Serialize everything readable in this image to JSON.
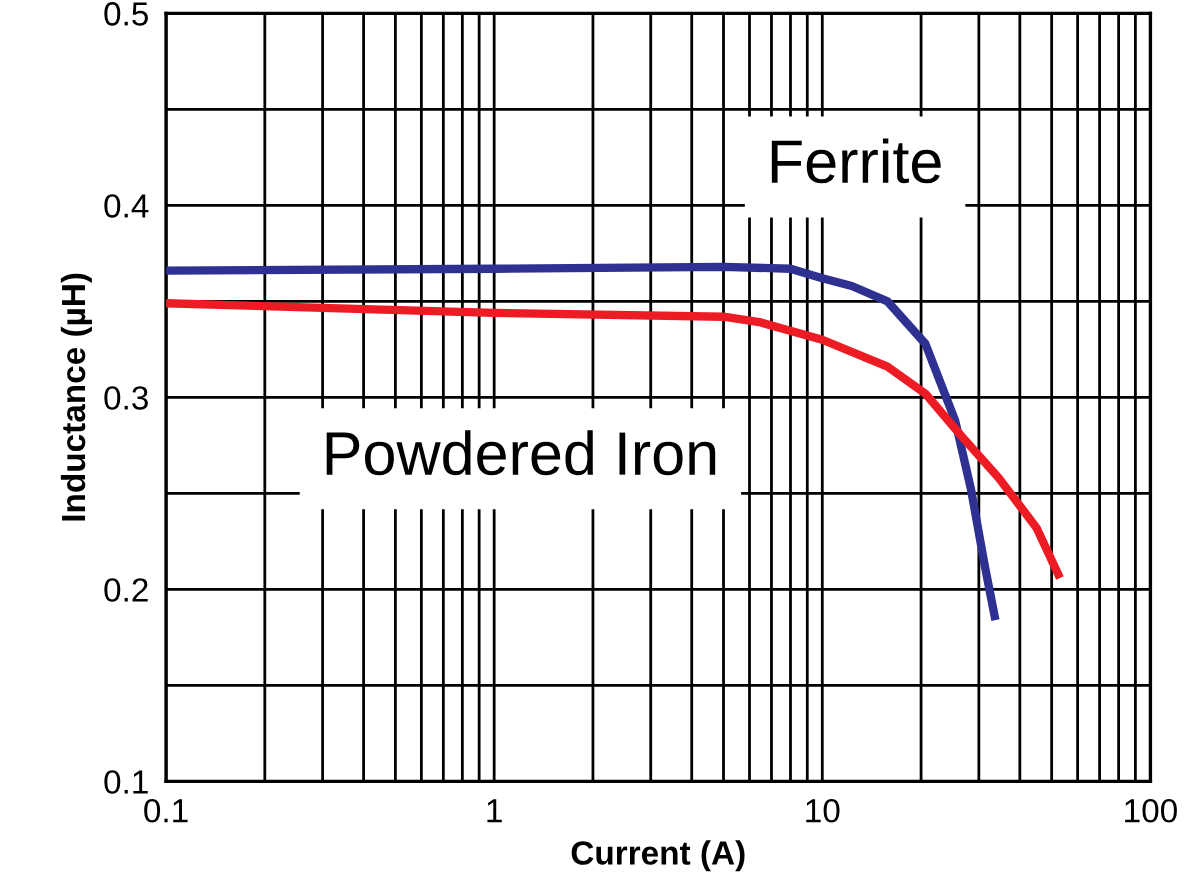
{
  "chart_data": {
    "type": "line",
    "xlabel": "Current (A)",
    "ylabel": "Inductance (µH)",
    "log": "x",
    "grid": true,
    "xlim": [
      0.1,
      100
    ],
    "ylim": [
      0.1,
      0.5
    ],
    "xticks": [
      0.1,
      {
        "value": 0.2,
        "label": null
      },
      {
        "value": 0.3,
        "label": null
      },
      {
        "value": 0.4,
        "label": null
      },
      {
        "value": 0.5,
        "label": null
      },
      {
        "value": 0.6,
        "label": null
      },
      {
        "value": 0.7,
        "label": null
      },
      {
        "value": 0.8,
        "label": null
      },
      {
        "value": 0.9,
        "label": null
      },
      1,
      {
        "value": 2,
        "label": null
      },
      {
        "value": 3,
        "label": null
      },
      {
        "value": 4,
        "label": null
      },
      {
        "value": 5,
        "label": null
      },
      {
        "value": 6,
        "label": null
      },
      {
        "value": 7,
        "label": null
      },
      {
        "value": 8,
        "label": null
      },
      {
        "value": 9,
        "label": null
      },
      10,
      {
        "value": 20,
        "label": null
      },
      {
        "value": 30,
        "label": null
      },
      {
        "value": 40,
        "label": null
      },
      {
        "value": 50,
        "label": null
      },
      {
        "value": 60,
        "label": null
      },
      {
        "value": 70,
        "label": null
      },
      {
        "value": 80,
        "label": null
      },
      {
        "value": 90,
        "label": null
      },
      100
    ],
    "yticks": [
      0.1,
      {
        "value": 0.15,
        "label": null
      },
      0.2,
      {
        "value": 0.25,
        "label": null
      },
      0.3,
      {
        "value": 0.35,
        "label": null
      },
      0.4,
      {
        "value": 0.45,
        "label": null
      },
      0.5
    ],
    "series": [
      {
        "color": "#2e3192",
        "x": [
          0.1,
          1,
          5,
          8,
          10,
          12.3,
          15.8,
          20.6,
          25.4,
          28.4,
          31.3,
          33.7
        ],
        "values": [
          0.366,
          0.367,
          0.368,
          0.367,
          0.362,
          0.358,
          0.35,
          0.328,
          0.288,
          0.252,
          0.212,
          0.184
        ]
      },
      {
        "color": "#ed1c24",
        "x": [
          0.1,
          1,
          5,
          6.5,
          10,
          15.8,
          20.6,
          26.5,
          34.5,
          45,
          53
        ],
        "values": [
          0.349,
          0.344,
          0.342,
          0.339,
          0.33,
          0.316,
          0.302,
          0.28,
          0.258,
          0.232,
          0.206
        ]
      }
    ],
    "annotations": [
      "Ferrite",
      "Powdered Iron"
    ]
  }
}
